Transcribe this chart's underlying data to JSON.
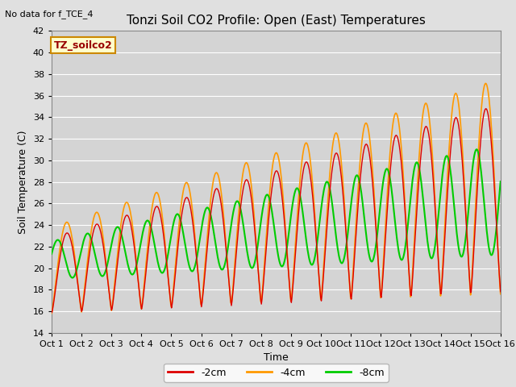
{
  "title": "Tonzi Soil CO2 Profile: Open (East) Temperatures",
  "no_data_text": "No data for f_TCE_4",
  "site_label": "TZ_soilco2",
  "ylabel": "Soil Temperature (C)",
  "xlabel": "Time",
  "ylim": [
    14,
    42
  ],
  "yticks": [
    14,
    16,
    18,
    20,
    22,
    24,
    26,
    28,
    30,
    32,
    34,
    36,
    38,
    40,
    42
  ],
  "xtick_labels": [
    "Oct 1",
    "Oct 2",
    "Oct 3",
    "Oct 4",
    "Oct 5",
    "Oct 6",
    "Oct 7",
    "Oct 8",
    "Oct 9",
    "Oct 10",
    "Oct 11",
    "Oct 12",
    "Oct 13",
    "Oct 14",
    "Oct 15",
    "Oct 16"
  ],
  "colors": {
    "neg2cm": "#dd0000",
    "neg4cm": "#ff9900",
    "neg8cm": "#00cc00"
  },
  "legend_labels": [
    "-2cm",
    "-4cm",
    "-8cm"
  ],
  "fig_facecolor": "#e0e0e0",
  "ax_facecolor": "#d4d4d4",
  "n_days": 15,
  "ppd": 48,
  "min_base": 15.8,
  "min_slope": 0.12,
  "amp_base_hot": 8.0,
  "amp_slope_hot": 1.6,
  "amp_base_green": 3.5,
  "amp_slope_green": 0.9,
  "phase_neg2": -0.05,
  "phase_neg4": 0.0,
  "phase_neg8": 1.9
}
